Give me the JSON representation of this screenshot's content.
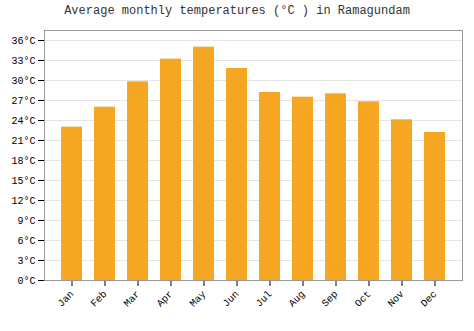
{
  "chart_data": {
    "type": "bar",
    "title": "Average monthly temperatures (°C ) in Ramagundam",
    "categories": [
      "Jan",
      "Feb",
      "Mar",
      "Apr",
      "May",
      "Jun",
      "Jul",
      "Aug",
      "Sep",
      "Oct",
      "Nov",
      "Dec"
    ],
    "values": [
      23.0,
      26.0,
      29.8,
      33.2,
      35.0,
      31.8,
      28.2,
      27.5,
      28.0,
      26.8,
      24.1,
      22.2
    ],
    "color": "#F5A623",
    "ylim": [
      0,
      37.5
    ],
    "yticks": [
      {
        "value": 0,
        "label": "0°C"
      },
      {
        "value": 3,
        "label": "3°C"
      },
      {
        "value": 6,
        "label": "6°C"
      },
      {
        "value": 9,
        "label": "9°C"
      },
      {
        "value": 12,
        "label": "12°C"
      },
      {
        "value": 15,
        "label": "15°C"
      },
      {
        "value": 18,
        "label": "18°C"
      },
      {
        "value": 21,
        "label": "21°C"
      },
      {
        "value": 24,
        "label": "24°C"
      },
      {
        "value": 27,
        "label": "27°C"
      },
      {
        "value": 30,
        "label": "30°C"
      },
      {
        "value": 33,
        "label": "33°C"
      },
      {
        "value": 36,
        "label": "36°C"
      }
    ],
    "grid": true
  }
}
